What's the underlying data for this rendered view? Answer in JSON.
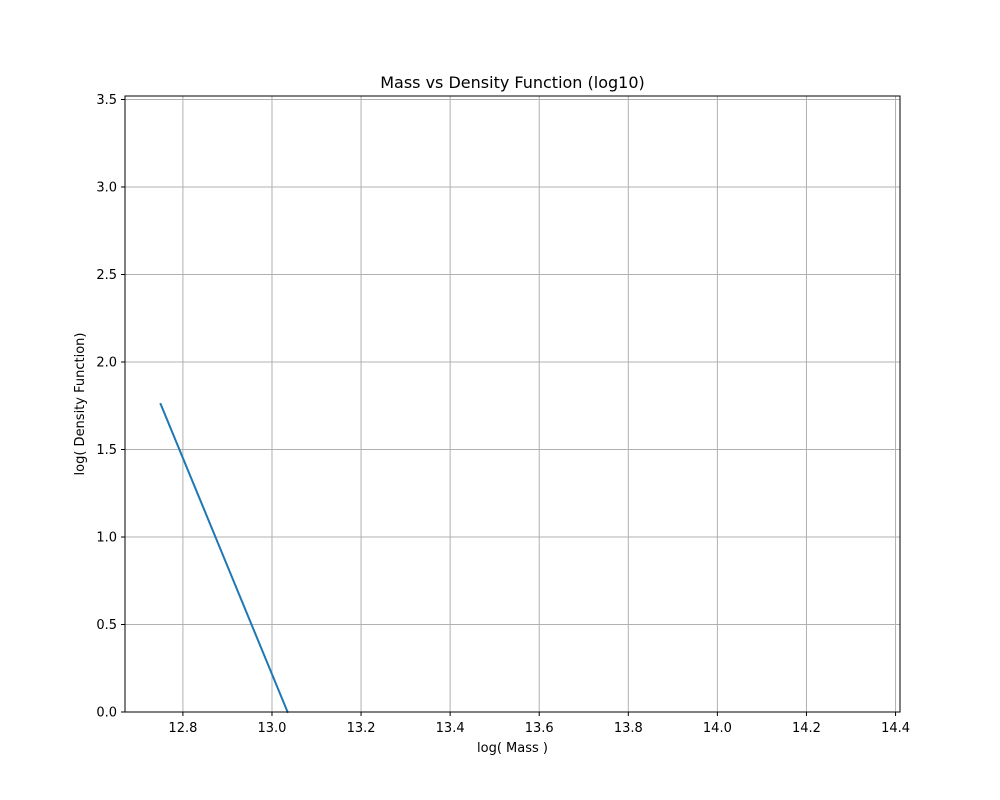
{
  "chart_data": {
    "type": "line",
    "title": "Mass vs Density Function (log10)",
    "xlabel": "log( Mass )",
    "ylabel": "log( Density Function)",
    "xlim": [
      12.67,
      14.41
    ],
    "ylim": [
      0.0,
      3.52
    ],
    "xticks": [
      12.8,
      13.0,
      13.2,
      13.4,
      13.6,
      13.8,
      14.0,
      14.2,
      14.4
    ],
    "yticks": [
      0.0,
      0.5,
      1.0,
      1.5,
      2.0,
      2.5,
      3.0,
      3.5
    ],
    "xtick_labels": [
      "12.8",
      "13.0",
      "13.2",
      "13.4",
      "13.6",
      "13.8",
      "14.0",
      "14.2",
      "14.4"
    ],
    "ytick_labels": [
      "0.0",
      "0.5",
      "1.0",
      "1.5",
      "2.0",
      "2.5",
      "3.0",
      "3.5"
    ],
    "grid": true,
    "series": [
      {
        "color": "#1f77b4",
        "x": [
          12.75,
          13.035
        ],
        "y": [
          1.76,
          0.0
        ]
      }
    ]
  }
}
